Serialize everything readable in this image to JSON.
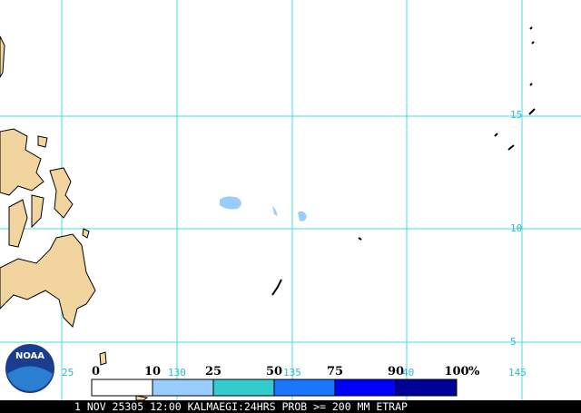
{
  "map": {
    "lat_labels": [
      "15",
      "10",
      "5"
    ],
    "lon_labels": [
      "25",
      "130",
      "135",
      "40",
      "145"
    ],
    "legend": {
      "labels": [
        "0",
        "10",
        "25",
        "50",
        "75",
        "90",
        "100"
      ],
      "unit": "%",
      "colors": [
        "#ffffff",
        "#99ccff",
        "#33cccc",
        "#1a75ff",
        "#0000ff",
        "#000099"
      ]
    },
    "logo": "NOAA",
    "caption": "1 NOV 25305 12:00 KALMAEGI:24HRS PROB >= 200 MM ETRAP"
  }
}
